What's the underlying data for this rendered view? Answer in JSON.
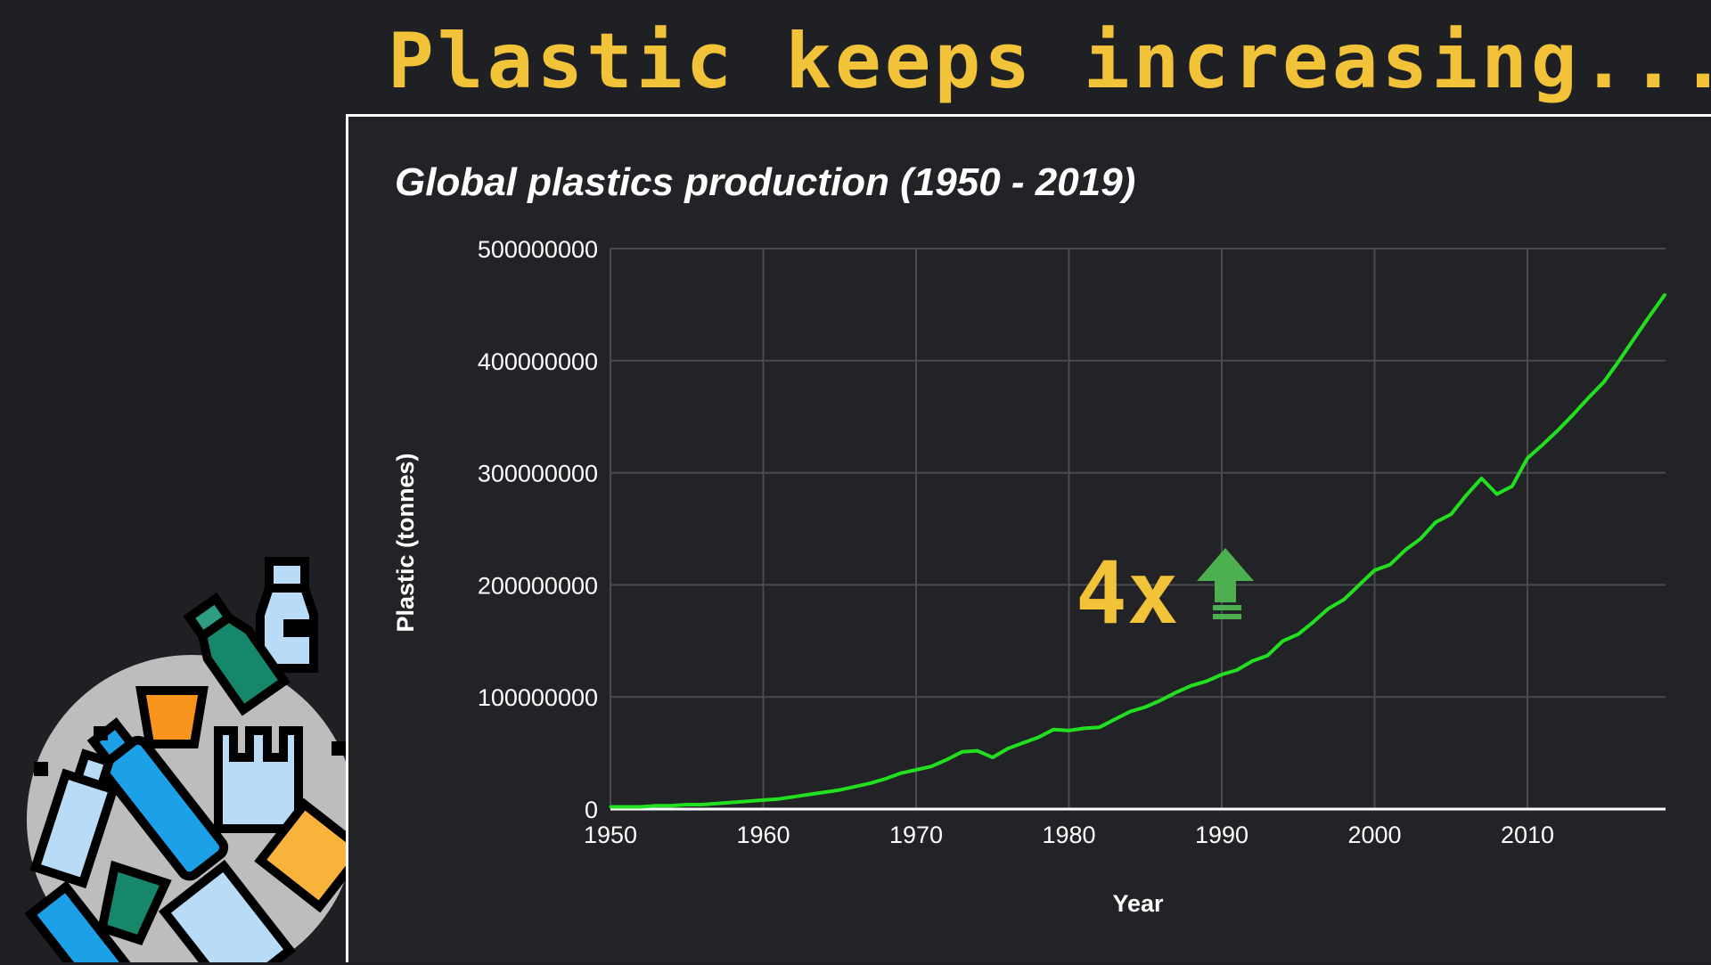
{
  "slide": {
    "title": "Plastic keeps increasing..."
  },
  "annotation": {
    "multiplier_label": "4x",
    "arrow_icon": "arrow-up-icon",
    "color": "#f2c338",
    "arrow_color": "#4caf50"
  },
  "illustration": {
    "icon": "plastic-waste-pile-icon"
  },
  "colors": {
    "background": "#1f2024",
    "title": "#f2c338",
    "line": "#22e01f",
    "grid": "#4a4b4f",
    "text": "#ffffff"
  },
  "chart_data": {
    "type": "line",
    "title": "Global plastics production (1950 - 2019)",
    "xlabel": "Year",
    "ylabel": "Plastic (tonnes)",
    "xlim": [
      1950,
      2019
    ],
    "ylim": [
      0,
      500000000
    ],
    "x_ticks": [
      1950,
      1960,
      1970,
      1980,
      1990,
      2000,
      2010
    ],
    "y_ticks": [
      0,
      100000000,
      200000000,
      300000000,
      400000000,
      500000000
    ],
    "grid": true,
    "legend": "none",
    "series": [
      {
        "name": "Global plastics production",
        "x": [
          1950,
          1951,
          1952,
          1953,
          1954,
          1955,
          1956,
          1957,
          1958,
          1959,
          1960,
          1961,
          1962,
          1963,
          1964,
          1965,
          1966,
          1967,
          1968,
          1969,
          1970,
          1971,
          1972,
          1973,
          1974,
          1975,
          1976,
          1977,
          1978,
          1979,
          1980,
          1981,
          1982,
          1983,
          1984,
          1985,
          1986,
          1987,
          1988,
          1989,
          1990,
          1991,
          1992,
          1993,
          1994,
          1995,
          1996,
          1997,
          1998,
          1999,
          2000,
          2001,
          2002,
          2003,
          2004,
          2005,
          2006,
          2007,
          2008,
          2009,
          2010,
          2011,
          2012,
          2013,
          2014,
          2015,
          2016,
          2017,
          2018,
          2019
        ],
        "values": [
          2000000,
          2000000,
          2000000,
          3000000,
          3000000,
          4000000,
          4000000,
          5000000,
          6000000,
          7000000,
          8000000,
          9000000,
          11000000,
          13000000,
          15000000,
          17000000,
          20000000,
          23000000,
          27000000,
          32000000,
          35000000,
          38000000,
          44000000,
          51000000,
          52000000,
          46000000,
          54000000,
          59000000,
          64000000,
          71000000,
          70000000,
          72000000,
          73000000,
          80000000,
          87000000,
          91000000,
          97000000,
          104000000,
          110000000,
          114000000,
          120000000,
          124000000,
          132000000,
          137000000,
          150000000,
          156000000,
          167000000,
          179000000,
          187000000,
          200000000,
          213000000,
          218000000,
          231000000,
          241000000,
          256000000,
          263000000,
          280000000,
          295000000,
          281000000,
          288000000,
          313000000,
          325000000,
          338000000,
          352000000,
          367000000,
          381000000,
          400000000,
          420000000,
          440000000,
          459000000
        ]
      }
    ]
  }
}
